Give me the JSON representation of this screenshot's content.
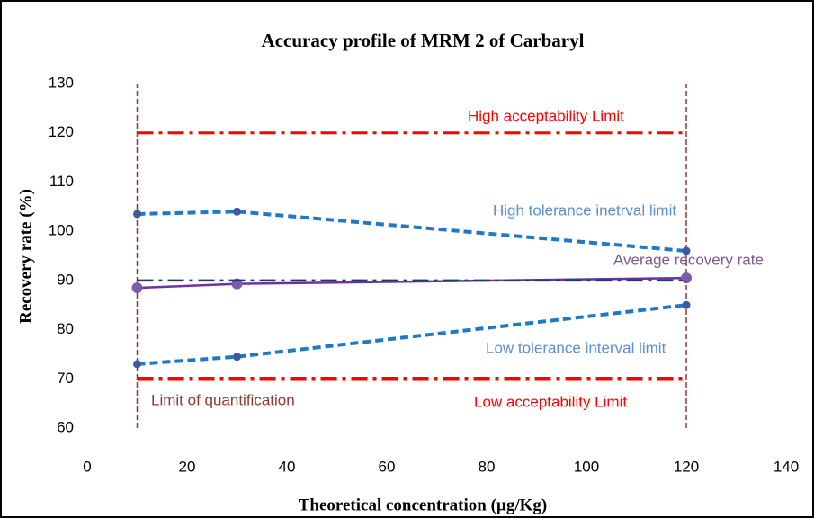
{
  "chart_data": {
    "type": "line",
    "title": "Accuracy profile of MRM 2 of Carbaryl",
    "x_label": "Theoretical concentration (µg/Kg)",
    "y_label": "Recovery rate (%)",
    "xlim": [
      0,
      140
    ],
    "xticks": [
      0,
      20,
      40,
      60,
      80,
      100,
      120,
      140
    ],
    "ylim": [
      60,
      130
    ],
    "yticks": [
      60,
      70,
      80,
      90,
      100,
      110,
      120,
      130
    ],
    "grid": false,
    "series": [
      {
        "name": "High acceptability Limit",
        "color": "#ff0000",
        "style": "dashdot",
        "x": [
          10,
          120
        ],
        "values": [
          120,
          120
        ]
      },
      {
        "name": "High tolerance inetrval limit",
        "color": "#1f78c8",
        "style": "dashed",
        "markers": true,
        "x": [
          10,
          30,
          120
        ],
        "values": [
          103.5,
          104,
          96
        ]
      },
      {
        "name": "Average recovery rate",
        "color": "#7030a0",
        "style": "solid",
        "markers": true,
        "x": [
          10,
          30,
          120
        ],
        "values": [
          88.5,
          89.3,
          90.5
        ]
      },
      {
        "color": "#1f3864",
        "style": "dashdot",
        "x": [
          10,
          120
        ],
        "values": [
          90,
          90
        ]
      },
      {
        "name": "Low tolerance interval limit",
        "color": "#1f78c8",
        "style": "dashed",
        "markers": true,
        "x": [
          10,
          30,
          120
        ],
        "values": [
          73,
          74.5,
          85
        ]
      },
      {
        "name": "Low acceptability Limit",
        "color": "#ff0000",
        "style": "dashdot",
        "x": [
          10,
          120
        ],
        "values": [
          70,
          70
        ]
      }
    ],
    "vlines": {
      "name": "Limit of quantification",
      "color": "#953735",
      "x": [
        10,
        120
      ]
    }
  }
}
